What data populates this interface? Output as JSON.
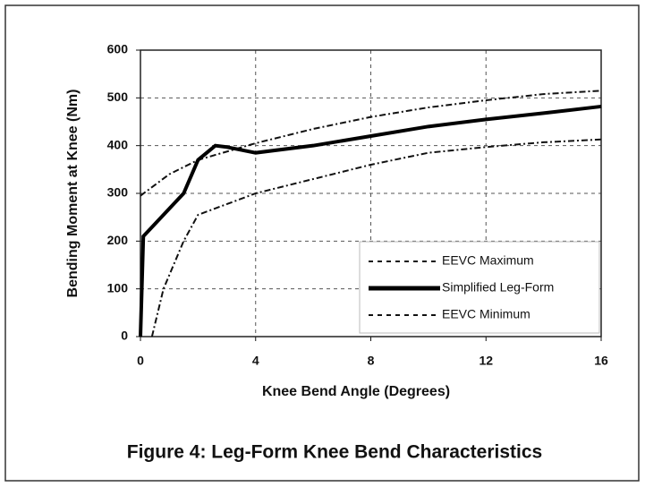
{
  "chart_data": {
    "type": "line",
    "title": "Figure 4:  Leg-Form Knee Bend Characteristics",
    "x_label": "Knee Bend Angle (Degrees)",
    "y_label": "Bending Moment at Knee (Nm)",
    "xlim": [
      0,
      16
    ],
    "xticks": [
      0,
      4,
      8,
      12,
      16
    ],
    "ylim": [
      0,
      600
    ],
    "yticks": [
      0,
      100,
      200,
      300,
      400,
      500,
      600
    ],
    "grid": true,
    "legend": "lower right",
    "series": [
      {
        "name": "EEVC Maximum",
        "color": "#111111",
        "style": "dashdot",
        "x": [
          0,
          1,
          2,
          4,
          6,
          8,
          10,
          12,
          14,
          16
        ],
        "values": [
          295,
          340,
          370,
          405,
          435,
          460,
          480,
          495,
          508,
          515
        ]
      },
      {
        "name": "Simplified Leg-Form",
        "color": "#000000",
        "style": "solid",
        "x": [
          0,
          0.1,
          1.5,
          2,
          2.6,
          3,
          4,
          6,
          8,
          10,
          12,
          14,
          16
        ],
        "values": [
          0,
          210,
          300,
          370,
          400,
          397,
          385,
          400,
          420,
          440,
          455,
          468,
          482
        ]
      },
      {
        "name": "EEVC Minimum",
        "color": "#111111",
        "style": "dashdot",
        "x": [
          0.4,
          0.8,
          1.5,
          2,
          4,
          6,
          8,
          10,
          12,
          14,
          16
        ],
        "values": [
          0,
          100,
          200,
          255,
          300,
          330,
          360,
          385,
          397,
          407,
          413
        ]
      }
    ]
  }
}
